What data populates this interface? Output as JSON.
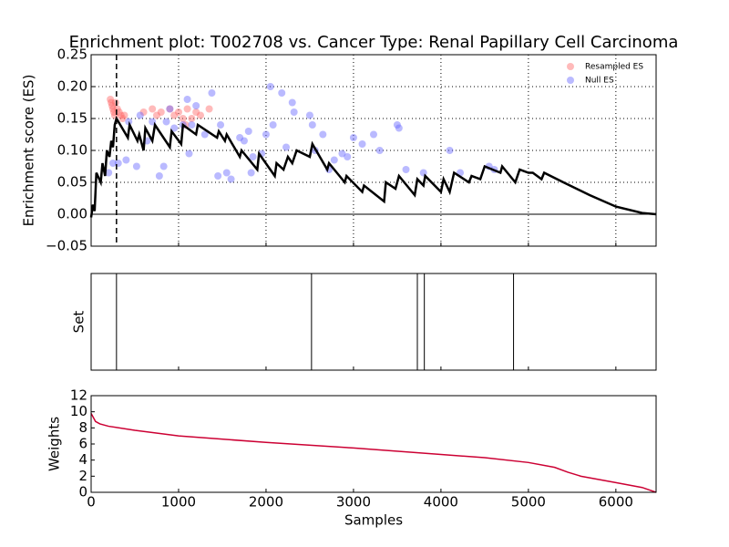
{
  "chart_data": [
    {
      "type": "enrichment",
      "title": "Enrichment plot: T002708 vs. Cancer Type: Renal Papillary Cell Carcinoma",
      "ylabel": "Enrichment score (ES)",
      "xlim": [
        0,
        6460
      ],
      "ylim": [
        -0.05,
        0.25
      ],
      "yticks": [
        {
          "value": -0.05,
          "label": "−0.05"
        },
        {
          "value": 0,
          "label": "0.00"
        },
        {
          "value": 0.05,
          "label": "0.05"
        },
        {
          "value": 0.1,
          "label": "0.10"
        },
        {
          "value": 0.15,
          "label": "0.15"
        },
        {
          "value": 0.2,
          "label": "0.20"
        },
        {
          "value": 0.25,
          "label": "0.25"
        }
      ],
      "grid": true,
      "vline": 290,
      "hline": 0,
      "legend": "upper right",
      "series": [
        {
          "name": "Resampled ES",
          "type": "scatter",
          "color": "#ff6666",
          "x": [
            220,
            230,
            240,
            250,
            260,
            270,
            280,
            300,
            320,
            340,
            360,
            380,
            600,
            700,
            750,
            800,
            900,
            950,
            1000,
            1050,
            1100,
            1150,
            1200,
            1350,
            1080,
            1250
          ],
          "values": [
            0.18,
            0.175,
            0.17,
            0.165,
            0.16,
            0.155,
            0.175,
            0.165,
            0.16,
            0.155,
            0.15,
            0.155,
            0.16,
            0.165,
            0.155,
            0.16,
            0.165,
            0.155,
            0.16,
            0.15,
            0.165,
            0.15,
            0.16,
            0.165,
            0.14,
            0.155
          ]
        },
        {
          "name": "Null ES",
          "type": "scatter",
          "color": "#6666ff",
          "x": [
            200,
            250,
            310,
            400,
            430,
            520,
            560,
            640,
            700,
            780,
            830,
            860,
            900,
            950,
            1050,
            1100,
            1120,
            1150,
            1200,
            1300,
            1380,
            1450,
            1480,
            1550,
            1600,
            1700,
            1750,
            1800,
            1830,
            1850,
            1950,
            2000,
            2050,
            2080,
            2180,
            2230,
            2300,
            2320,
            2500,
            2530,
            2560,
            2650,
            2720,
            2780,
            2870,
            2930,
            3000,
            3100,
            3230,
            3300,
            3500,
            3520,
            3600,
            3800,
            4100,
            4220,
            4550,
            4610
          ],
          "values": [
            0.065,
            0.08,
            0.08,
            0.085,
            0.145,
            0.075,
            0.155,
            0.115,
            0.145,
            0.06,
            0.075,
            0.145,
            0.165,
            0.135,
            0.14,
            0.18,
            0.095,
            0.14,
            0.17,
            0.125,
            0.19,
            0.06,
            0.14,
            0.065,
            0.055,
            0.12,
            0.115,
            0.13,
            0.065,
            0.09,
            0.095,
            0.125,
            0.2,
            0.14,
            0.19,
            0.105,
            0.175,
            0.16,
            0.155,
            0.14,
            0.1,
            0.125,
            0.07,
            0.085,
            0.095,
            0.09,
            0.12,
            0.11,
            0.125,
            0.1,
            0.14,
            0.135,
            0.07,
            0.065,
            0.1,
            0.065,
            0.075,
            0.07
          ]
        },
        {
          "type": "line",
          "color": "#000000",
          "x": [
            0,
            20,
            40,
            60,
            110,
            130,
            160,
            180,
            210,
            230,
            250,
            270,
            290,
            420,
            440,
            530,
            550,
            600,
            620,
            700,
            730,
            900,
            920,
            1030,
            1050,
            1200,
            1220,
            1440,
            1460,
            1530,
            1550,
            1700,
            1720,
            1900,
            1920,
            2100,
            2120,
            2200,
            2250,
            2300,
            2350,
            2500,
            2530,
            2700,
            2720,
            2900,
            2920,
            3100,
            3120,
            3350,
            3370,
            3480,
            3520,
            3700,
            3730,
            3800,
            3820,
            4000,
            4030,
            4100,
            4150,
            4320,
            4350,
            4450,
            4500,
            4680,
            4700,
            4850,
            4900,
            5000,
            5050,
            5150,
            5180,
            5400,
            5700,
            6000,
            6300,
            6460
          ],
          "values": [
            -0.005,
            0.015,
            0.005,
            0.065,
            0.05,
            0.08,
            0.06,
            0.1,
            0.09,
            0.115,
            0.105,
            0.14,
            0.15,
            0.12,
            0.14,
            0.115,
            0.125,
            0.1,
            0.135,
            0.115,
            0.14,
            0.105,
            0.13,
            0.11,
            0.14,
            0.125,
            0.14,
            0.12,
            0.13,
            0.115,
            0.125,
            0.09,
            0.1,
            0.07,
            0.095,
            0.06,
            0.08,
            0.07,
            0.09,
            0.08,
            0.1,
            0.09,
            0.11,
            0.07,
            0.08,
            0.05,
            0.06,
            0.035,
            0.045,
            0.02,
            0.05,
            0.04,
            0.06,
            0.03,
            0.055,
            0.045,
            0.06,
            0.035,
            0.055,
            0.035,
            0.065,
            0.05,
            0.06,
            0.055,
            0.075,
            0.065,
            0.075,
            0.05,
            0.07,
            0.065,
            0.065,
            0.055,
            0.065,
            0.05,
            0.03,
            0.012,
            0.002,
            0
          ]
        }
      ]
    },
    {
      "type": "event",
      "ylabel": "Set",
      "xlim": [
        0,
        6460
      ],
      "events": [
        290,
        2520,
        3730,
        3810,
        4830
      ],
      "color": "#000000"
    },
    {
      "type": "line",
      "ylabel": "Weights",
      "xlabel": "Samples",
      "xlim": [
        0,
        6460
      ],
      "ylim": [
        0,
        12
      ],
      "xticks": [
        0,
        1000,
        2000,
        3000,
        4000,
        5000,
        6000
      ],
      "yticks": [
        0,
        2,
        4,
        6,
        8,
        10,
        12
      ],
      "color": "#cc0033",
      "x": [
        0,
        50,
        100,
        200,
        500,
        1000,
        2000,
        3000,
        4000,
        4500,
        5000,
        5300,
        5450,
        5600,
        6000,
        6300,
        6460
      ],
      "values": [
        9.8,
        8.8,
        8.5,
        8.2,
        7.7,
        7.0,
        6.2,
        5.5,
        4.7,
        4.3,
        3.7,
        3.1,
        2.5,
        2.0,
        1.2,
        0.6,
        0
      ]
    }
  ]
}
